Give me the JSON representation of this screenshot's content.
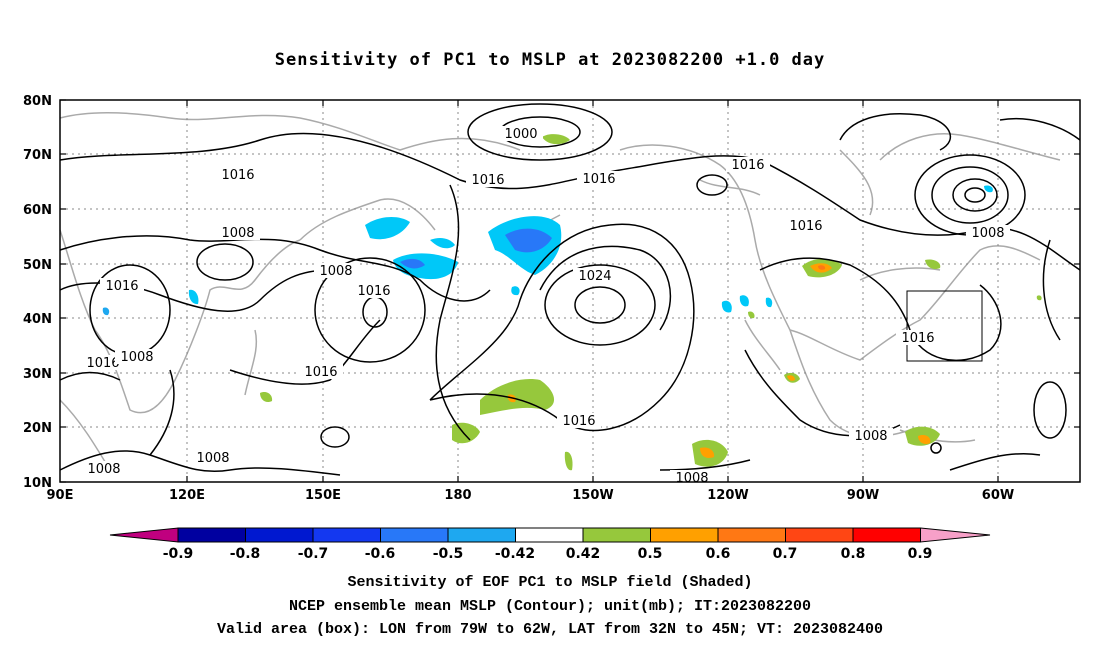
{
  "title": "Sensitivity of PC1 to MSLP at 2023082200 +1.0 day",
  "map": {
    "lon_labels": [
      "90E",
      "120E",
      "150E",
      "180",
      "150W",
      "120W",
      "90W",
      "60W"
    ],
    "lat_labels": [
      "10N",
      "20N",
      "30N",
      "40N",
      "50N",
      "60N",
      "70N",
      "80N"
    ],
    "contour_labels": [
      "1000",
      "1016",
      "1016",
      "1016",
      "1016",
      "1016",
      "1016",
      "1016",
      "1016",
      "1016",
      "1016",
      "1024",
      "1016",
      "1008",
      "1008",
      "1008",
      "1008",
      "1008",
      "1008",
      "1008",
      "1008"
    ],
    "valid_box": {
      "lon_west": "79W",
      "lon_east": "62W",
      "lat_south": "32N",
      "lat_north": "45N"
    }
  },
  "colorbar": {
    "colors": [
      "#c0007f",
      "#0000a0",
      "#0018d0",
      "#1438f0",
      "#2878f8",
      "#1ea8f0",
      "#00c8f8",
      "#ffffff",
      "#96c83c",
      "#ffa000",
      "#ff7814",
      "#ff4614",
      "#ff0000",
      "#f7a0c8"
    ],
    "labels": [
      "-0.9",
      "-0.8",
      "-0.7",
      "-0.6",
      "-0.5",
      "-0.42",
      "0.42",
      "0.5",
      "0.6",
      "0.7",
      "0.8",
      "0.9"
    ]
  },
  "caption": {
    "line1": "Sensitivity of EOF PC1 to MSLP field (Shaded)",
    "line2": "NCEP ensemble mean MSLP (Contour); unit(mb); IT:2023082200",
    "line3": "Valid area (box): LON from 79W to 62W, LAT from 32N to 45N; VT: 2023082400"
  }
}
